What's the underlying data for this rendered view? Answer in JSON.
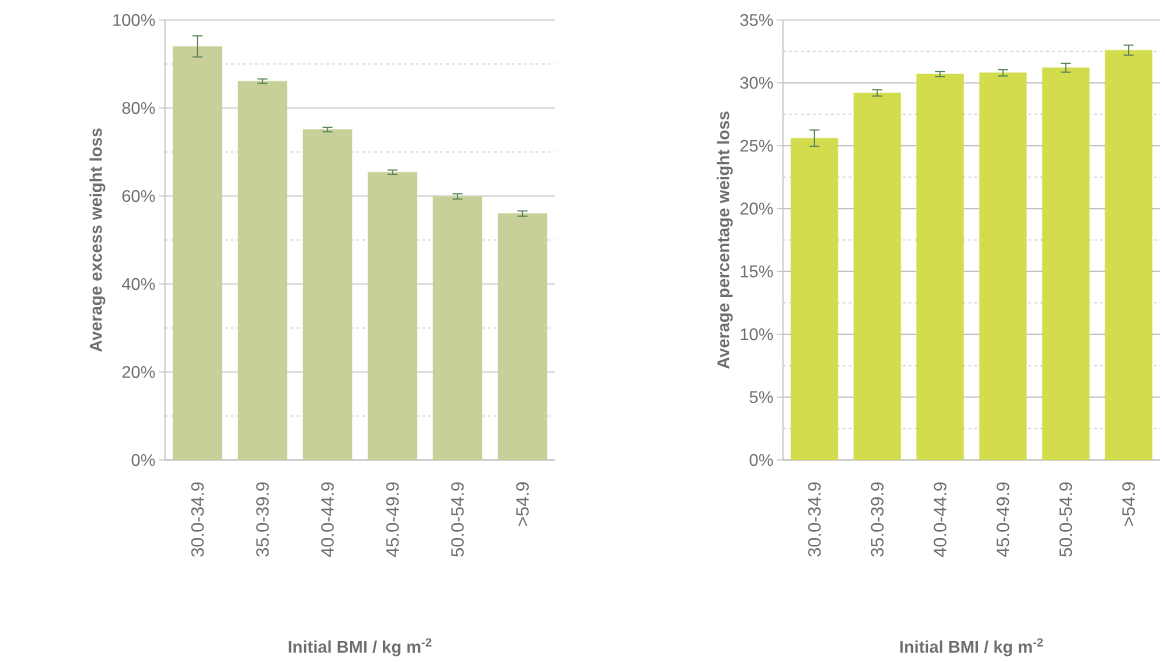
{
  "chart_data": [
    {
      "type": "bar",
      "ylabel": "Average excess weight loss",
      "xlabel": "Initial BMI / kg m$^{-2}$",
      "categories": [
        "30.0-34.9",
        "35.0-39.9",
        "40.0-44.9",
        "45.0-49.9",
        "50.0-54.9",
        ">54.9"
      ],
      "values": [
        94.0,
        86.1,
        75.1,
        65.4,
        59.9,
        56.0
      ],
      "errors": [
        2.4,
        0.5,
        0.5,
        0.5,
        0.6,
        0.6
      ],
      "color": "#c9cf98",
      "ylim": [
        0,
        100
      ],
      "yticks": [
        {
          "value": 0,
          "label": "0%"
        },
        {
          "value": 20,
          "label": "20%"
        },
        {
          "value": 40,
          "label": "40%"
        },
        {
          "value": 60,
          "label": "60%"
        },
        {
          "value": 80,
          "label": "80%"
        },
        {
          "value": 100,
          "label": "100%"
        }
      ],
      "grid": "y"
    },
    {
      "type": "bar",
      "ylabel": "Average percentage weight loss",
      "xlabel": "Initial BMI / kg m$^{-2}$",
      "categories": [
        "30.0-34.9",
        "35.0-39.9",
        "40.0-44.9",
        "45.0-49.9",
        "50.0-54.9",
        ">54.9"
      ],
      "values": [
        25.6,
        29.2,
        30.7,
        30.8,
        31.2,
        32.6
      ],
      "errors": [
        0.65,
        0.25,
        0.2,
        0.25,
        0.35,
        0.4
      ],
      "color": "#d2dc4c",
      "ylim": [
        0,
        35
      ],
      "yticks": [
        {
          "value": 0,
          "label": "0%"
        },
        {
          "value": 5,
          "label": "5%"
        },
        {
          "value": 10,
          "label": "10%"
        },
        {
          "value": 15,
          "label": "15%"
        },
        {
          "value": 20,
          "label": "20%"
        },
        {
          "value": 25,
          "label": "25%"
        },
        {
          "value": 30,
          "label": "30%"
        },
        {
          "value": 35,
          "label": "35%"
        }
      ],
      "grid": "y"
    }
  ]
}
